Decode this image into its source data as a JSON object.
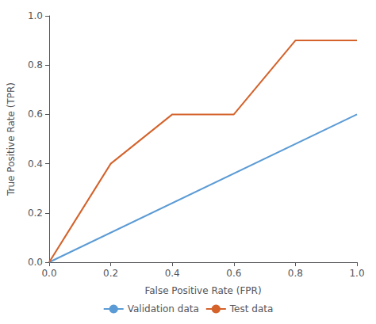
{
  "chart_data": {
    "type": "line",
    "xlabel": "False Positive Rate (FPR)",
    "ylabel": "True Positive Rate (TPR)",
    "series": [
      {
        "name": "Validation data",
        "color": "#5b9bd5",
        "x": [
          0.0,
          1.0
        ],
        "values": [
          0.0,
          0.6
        ]
      },
      {
        "name": "Test data",
        "color": "#d4622a",
        "x": [
          0.0,
          0.05,
          0.2,
          0.4,
          0.6,
          0.8,
          1.0
        ],
        "values": [
          0.0,
          0.1,
          0.4,
          0.6,
          0.6,
          0.9,
          0.9
        ]
      }
    ],
    "xlim": [
      0,
      1
    ],
    "ylim": [
      0,
      1
    ],
    "xticks": [
      {
        "value": 0,
        "label": "0.0"
      },
      0.2,
      0.4,
      0.6,
      0.8,
      {
        "value": 1.0,
        "label": "1.0"
      }
    ],
    "yticks": [
      {
        "value": 0,
        "label": "0.0"
      },
      0.2,
      0.4,
      0.6,
      0.8,
      {
        "value": 1.0,
        "label": "1.0"
      }
    ],
    "grid": false,
    "legend": "bottom"
  }
}
